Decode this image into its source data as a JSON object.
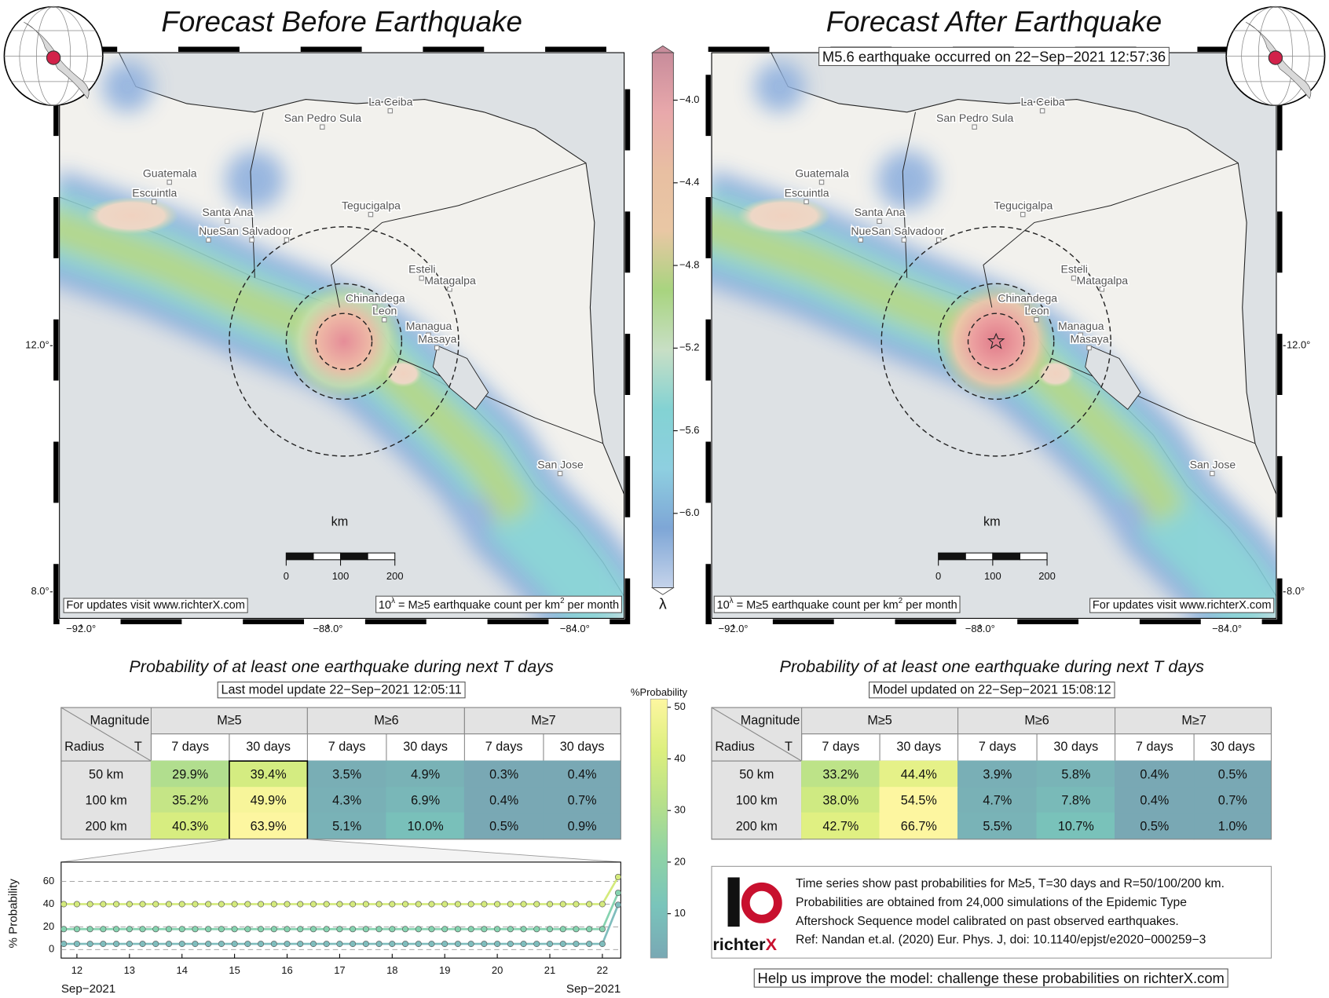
{
  "maps": [
    {
      "title": "Forecast Before Earthquake",
      "cities": [
        "San Pedro Sula",
        "La Ceiba",
        "Guatemala",
        "Escuintla",
        "Santa Ana",
        "Nue",
        "San Salvador",
        "or",
        "Tegucigalpa",
        "Esteli",
        "Matagalpa",
        "Chinandega",
        "Leon",
        "Managua",
        "Masaya",
        "San Jose"
      ],
      "xlim": [
        -92.35,
        -83.2
      ],
      "ylim": [
        7.57,
        16.76
      ],
      "xticks": [
        {
          "value": -92,
          "label": "−92.0°"
        },
        {
          "value": -88,
          "label": "−88.0°"
        },
        {
          "value": -84,
          "label": "−84.0°"
        }
      ],
      "yticks": [
        {
          "value": 8,
          "label": "8.0°"
        },
        {
          "value": 12,
          "label": "12.0°"
        }
      ],
      "scale": {
        "unit": "km",
        "ticks": [
          0,
          100,
          200
        ]
      },
      "website": "For updates visit www.richterX.com",
      "formula": [
        "10",
        "λ",
        " = M≥5 earthquake count per km",
        "2",
        " per month"
      ]
    },
    {
      "title": "Forecast After Earthquake",
      "note": "M5.6 earthquake occurred on 22−Sep−2021 12:57:36",
      "cities": [
        "San Pedro Sula",
        "La Ceiba",
        "Guatemala",
        "Escuintla",
        "Santa Ana",
        "Nue",
        "San Salvador",
        "or",
        "Tegucigalpa",
        "Esteli",
        "Matagalpa",
        "Chinandega",
        "Leon",
        "Managua",
        "Masaya",
        "San Jose"
      ],
      "xlim": [
        -92.35,
        -83.2
      ],
      "ylim": [
        7.57,
        16.76
      ],
      "xticks": [
        {
          "value": -92,
          "label": "−92.0°"
        },
        {
          "value": -88,
          "label": "−88.0°"
        },
        {
          "value": -84,
          "label": "−84.0°"
        }
      ],
      "yticks": [
        {
          "value": 8,
          "label": "8.0°"
        },
        {
          "value": 12,
          "label": "12.0°"
        }
      ],
      "scale": {
        "unit": "km",
        "ticks": [
          0,
          100,
          200
        ]
      },
      "website": "For updates visit www.richterX.com",
      "formula": [
        "10",
        "λ",
        " = M≥5 earthquake count per km",
        "2",
        " per month"
      ]
    }
  ],
  "lambda_colorbar": {
    "label": "λ",
    "lim": [
      -6.36,
      -3.77
    ],
    "ticks": [
      {
        "value": -4,
        "label": "−4.0"
      },
      {
        "value": -4.4,
        "label": "−4.4"
      },
      {
        "value": -4.8,
        "label": "−4.8"
      },
      {
        "value": -5.2,
        "label": "−5.2"
      },
      {
        "value": -5.6,
        "label": "−5.6"
      },
      {
        "value": -6,
        "label": "−6.0"
      }
    ]
  },
  "forecasts": [
    {
      "title": "Probability of at least one earthquake during next T days",
      "updated": "Last model update 22−Sep−2021 12:05:11",
      "table": {
        "corner": [
          "Magnitude",
          "Radius",
          "T"
        ],
        "magnitudes": [
          "M≥5",
          "M≥6",
          "M≥7"
        ],
        "windows": [
          "7 days",
          "30 days",
          "7 days",
          "30 days",
          "7 days",
          "30 days"
        ],
        "rows": [
          {
            "radius": "50 km",
            "values": [
              29.9,
              39.4,
              3.5,
              4.9,
              0.3,
              0.4
            ],
            "value_labels": [
              "29.9%",
              "39.4%",
              "3.5%",
              "4.9%",
              "0.3%",
              "0.4%"
            ]
          },
          {
            "radius": "100 km",
            "values": [
              35.2,
              49.9,
              4.3,
              6.9,
              0.4,
              0.7
            ],
            "value_labels": [
              "35.2%",
              "49.9%",
              "4.3%",
              "6.9%",
              "0.4%",
              "0.7%"
            ]
          },
          {
            "radius": "200 km",
            "values": [
              40.3,
              63.9,
              5.1,
              10.0,
              0.5,
              0.9
            ],
            "value_labels": [
              "40.3%",
              "63.9%",
              "5.1%",
              "10.0%",
              "0.5%",
              "0.9%"
            ]
          }
        ]
      }
    },
    {
      "title": "Probability of at least one earthquake during next T days",
      "updated": "Model updated on 22−Sep−2021 15:08:12",
      "table": {
        "corner": [
          "Magnitude",
          "Radius",
          "T"
        ],
        "magnitudes": [
          "M≥5",
          "M≥6",
          "M≥7"
        ],
        "windows": [
          "7 days",
          "30 days",
          "7 days",
          "30 days",
          "7 days",
          "30 days"
        ],
        "rows": [
          {
            "radius": "50 km",
            "values": [
              33.2,
              44.4,
              3.9,
              5.8,
              0.4,
              0.5
            ],
            "value_labels": [
              "33.2%",
              "44.4%",
              "3.9%",
              "5.8%",
              "0.4%",
              "0.5%"
            ]
          },
          {
            "radius": "100 km",
            "values": [
              38.0,
              54.5,
              4.7,
              7.8,
              0.4,
              0.7
            ],
            "value_labels": [
              "38.0%",
              "54.5%",
              "4.7%",
              "7.8%",
              "0.4%",
              "0.7%"
            ]
          },
          {
            "radius": "200 km",
            "values": [
              42.7,
              66.7,
              5.5,
              10.7,
              0.5,
              1.0
            ],
            "value_labels": [
              "42.7%",
              "66.7%",
              "5.5%",
              "10.7%",
              "0.5%",
              "1.0%"
            ]
          }
        ]
      }
    }
  ],
  "probability_colorbar": {
    "label": "%Probability",
    "lim": [
      1.4,
      51.6
    ],
    "ticks": [
      10,
      20,
      30,
      40,
      50
    ]
  },
  "chart_data": {
    "type": "line",
    "ylabel": "% Probability",
    "x": [
      11.75,
      12,
      12.25,
      12.5,
      12.75,
      13,
      13.25,
      13.5,
      13.75,
      14,
      14.25,
      14.5,
      14.75,
      15,
      15.25,
      15.5,
      15.75,
      16,
      16.25,
      16.5,
      16.75,
      17,
      17.25,
      17.5,
      17.75,
      18,
      18.25,
      18.5,
      18.75,
      19,
      19.25,
      19.5,
      19.75,
      20,
      20.25,
      20.5,
      20.75,
      21,
      21.25,
      21.5,
      21.75,
      22,
      22.3
    ],
    "xlim": [
      11.7,
      22.35
    ],
    "xticks": [
      12,
      13,
      14,
      15,
      16,
      17,
      18,
      19,
      20,
      21,
      22
    ],
    "ylim": [
      -7.5,
      77
    ],
    "yticks": [
      0,
      20,
      40,
      60
    ],
    "month_labels": [
      "Sep−2021",
      "Sep−2021"
    ],
    "series": [
      {
        "color": "#d4ea7c",
        "values": [
          40,
          40,
          40,
          40,
          40,
          40,
          40,
          40,
          40,
          40,
          40,
          40,
          40,
          40,
          40,
          40,
          40,
          40,
          40,
          40,
          40,
          40,
          40,
          40,
          40,
          40,
          40,
          40,
          40,
          40,
          40,
          40,
          40,
          40,
          40,
          40,
          40,
          40,
          40,
          40,
          40,
          40,
          63.9
        ]
      },
      {
        "color": "#86d3b0",
        "values": [
          18,
          18,
          18,
          18,
          18,
          18,
          18,
          18,
          18,
          18,
          18,
          18,
          18,
          18,
          18,
          18,
          18,
          18,
          18,
          18,
          18,
          18,
          18,
          18,
          18,
          18,
          18,
          18,
          18,
          18,
          18,
          18,
          18,
          18,
          18,
          18,
          18,
          18,
          18,
          18,
          18,
          18,
          49.9
        ]
      },
      {
        "color": "#7fbdbd",
        "values": [
          5,
          5,
          5,
          5,
          5,
          5,
          5,
          5,
          5,
          5,
          5,
          5,
          5,
          5,
          5,
          5,
          5,
          5,
          5,
          5,
          5,
          5,
          5,
          5,
          5,
          5,
          5,
          5,
          5,
          5,
          5,
          5,
          5,
          5,
          5,
          5,
          5,
          5,
          5,
          5,
          5,
          5,
          39.4
        ]
      }
    ]
  },
  "info": {
    "lines": [
      "Time series show past probabilities for M≥5, T=30 days and R=50/100/200 km.",
      "Probabilities are obtained from 24,000 simulations of the Epidemic Type",
      "Aftershock Sequence model calibrated on past observed earthquakes.",
      "Ref: Nandan et.al. (2020) Eur. Phys. J, doi: 10.1140/epjst/e2020−000259−3"
    ],
    "logo": [
      "richter",
      "X"
    ]
  },
  "footer": "Help us improve the model: challenge these probabilities on richterX.com"
}
